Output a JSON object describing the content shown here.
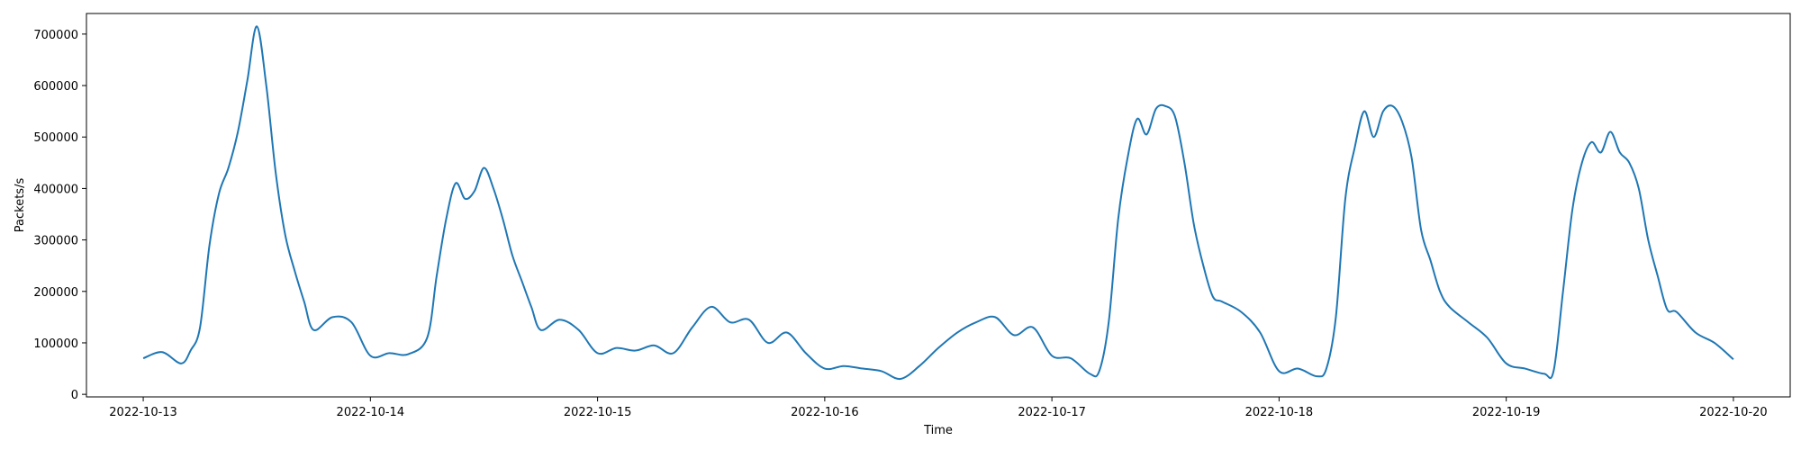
{
  "chart_data": {
    "type": "line",
    "title": "",
    "xlabel": "Time",
    "ylabel": "Packets/s",
    "xlim": [
      "2022-10-12T18:00",
      "2022-10-20T06:00"
    ],
    "ylim": [
      -5000,
      740000
    ],
    "grid": false,
    "x_ticks": [
      "2022-10-13",
      "2022-10-14",
      "2022-10-15",
      "2022-10-16",
      "2022-10-17",
      "2022-10-18",
      "2022-10-19",
      "2022-10-20"
    ],
    "y_ticks": [
      0,
      100000,
      200000,
      300000,
      400000,
      500000,
      600000,
      700000
    ],
    "y_tick_labels": [
      "0",
      "100000",
      "200000",
      "300000",
      "400000",
      "500000",
      "600000",
      "700000"
    ],
    "series": [
      {
        "color": "#1f77b4",
        "x": [
          "2022-10-13T00:00",
          "2022-10-13T02:00",
          "2022-10-13T04:00",
          "2022-10-13T05:00",
          "2022-10-13T06:00",
          "2022-10-13T07:00",
          "2022-10-13T08:00",
          "2022-10-13T09:00",
          "2022-10-13T10:00",
          "2022-10-13T11:00",
          "2022-10-13T12:00",
          "2022-10-13T13:00",
          "2022-10-13T14:00",
          "2022-10-13T15:00",
          "2022-10-13T16:00",
          "2022-10-13T17:00",
          "2022-10-13T18:00",
          "2022-10-13T20:00",
          "2022-10-13T22:00",
          "2022-10-14T00:00",
          "2022-10-14T02:00",
          "2022-10-14T04:00",
          "2022-10-14T06:00",
          "2022-10-14T07:00",
          "2022-10-14T08:00",
          "2022-10-14T09:00",
          "2022-10-14T10:00",
          "2022-10-14T11:00",
          "2022-10-14T12:00",
          "2022-10-14T13:00",
          "2022-10-14T14:00",
          "2022-10-14T15:00",
          "2022-10-14T16:00",
          "2022-10-14T17:00",
          "2022-10-14T18:00",
          "2022-10-14T20:00",
          "2022-10-14T22:00",
          "2022-10-15T00:00",
          "2022-10-15T02:00",
          "2022-10-15T04:00",
          "2022-10-15T06:00",
          "2022-10-15T08:00",
          "2022-10-15T10:00",
          "2022-10-15T12:00",
          "2022-10-15T14:00",
          "2022-10-15T16:00",
          "2022-10-15T18:00",
          "2022-10-15T20:00",
          "2022-10-15T22:00",
          "2022-10-16T00:00",
          "2022-10-16T02:00",
          "2022-10-16T04:00",
          "2022-10-16T06:00",
          "2022-10-16T08:00",
          "2022-10-16T10:00",
          "2022-10-16T12:00",
          "2022-10-16T14:00",
          "2022-10-16T16:00",
          "2022-10-16T18:00",
          "2022-10-16T20:00",
          "2022-10-16T22:00",
          "2022-10-17T00:00",
          "2022-10-17T02:00",
          "2022-10-17T04:00",
          "2022-10-17T05:00",
          "2022-10-17T06:00",
          "2022-10-17T07:00",
          "2022-10-17T08:00",
          "2022-10-17T09:00",
          "2022-10-17T10:00",
          "2022-10-17T11:00",
          "2022-10-17T12:00",
          "2022-10-17T13:00",
          "2022-10-17T14:00",
          "2022-10-17T15:00",
          "2022-10-17T16:00",
          "2022-10-17T17:00",
          "2022-10-17T18:00",
          "2022-10-17T20:00",
          "2022-10-17T22:00",
          "2022-10-18T00:00",
          "2022-10-18T02:00",
          "2022-10-18T04:00",
          "2022-10-18T05:00",
          "2022-10-18T06:00",
          "2022-10-18T07:00",
          "2022-10-18T08:00",
          "2022-10-18T09:00",
          "2022-10-18T10:00",
          "2022-10-18T11:00",
          "2022-10-18T12:00",
          "2022-10-18T13:00",
          "2022-10-18T14:00",
          "2022-10-18T15:00",
          "2022-10-18T16:00",
          "2022-10-18T17:00",
          "2022-10-18T18:00",
          "2022-10-18T20:00",
          "2022-10-18T22:00",
          "2022-10-19T00:00",
          "2022-10-19T02:00",
          "2022-10-19T04:00",
          "2022-10-19T05:00",
          "2022-10-19T06:00",
          "2022-10-19T07:00",
          "2022-10-19T08:00",
          "2022-10-19T09:00",
          "2022-10-19T10:00",
          "2022-10-19T11:00",
          "2022-10-19T12:00",
          "2022-10-19T13:00",
          "2022-10-19T14:00",
          "2022-10-19T15:00",
          "2022-10-19T16:00",
          "2022-10-19T17:00",
          "2022-10-19T18:00",
          "2022-10-19T20:00",
          "2022-10-19T22:00",
          "2022-10-20T00:00"
        ],
        "y": [
          70000,
          82000,
          60000,
          85000,
          130000,
          290000,
          390000,
          440000,
          510000,
          610000,
          715000,
          600000,
          430000,
          310000,
          240000,
          180000,
          125000,
          150000,
          140000,
          75000,
          80000,
          78000,
          110000,
          230000,
          340000,
          410000,
          380000,
          395000,
          440000,
          400000,
          340000,
          270000,
          220000,
          170000,
          125000,
          145000,
          125000,
          80000,
          90000,
          85000,
          95000,
          80000,
          130000,
          170000,
          140000,
          145000,
          100000,
          120000,
          80000,
          50000,
          55000,
          50000,
          45000,
          30000,
          55000,
          90000,
          120000,
          140000,
          150000,
          115000,
          130000,
          75000,
          70000,
          40000,
          45000,
          140000,
          340000,
          460000,
          535000,
          505000,
          555000,
          560000,
          540000,
          450000,
          330000,
          250000,
          190000,
          180000,
          160000,
          120000,
          45000,
          50000,
          35000,
          50000,
          150000,
          380000,
          480000,
          550000,
          500000,
          550000,
          560000,
          530000,
          460000,
          320000,
          260000,
          200000,
          170000,
          140000,
          110000,
          60000,
          50000,
          40000,
          45000,
          200000,
          360000,
          450000,
          490000,
          470000,
          510000,
          470000,
          450000,
          400000,
          300000,
          230000,
          165000,
          160000,
          120000,
          100000,
          68000
        ]
      }
    ]
  }
}
